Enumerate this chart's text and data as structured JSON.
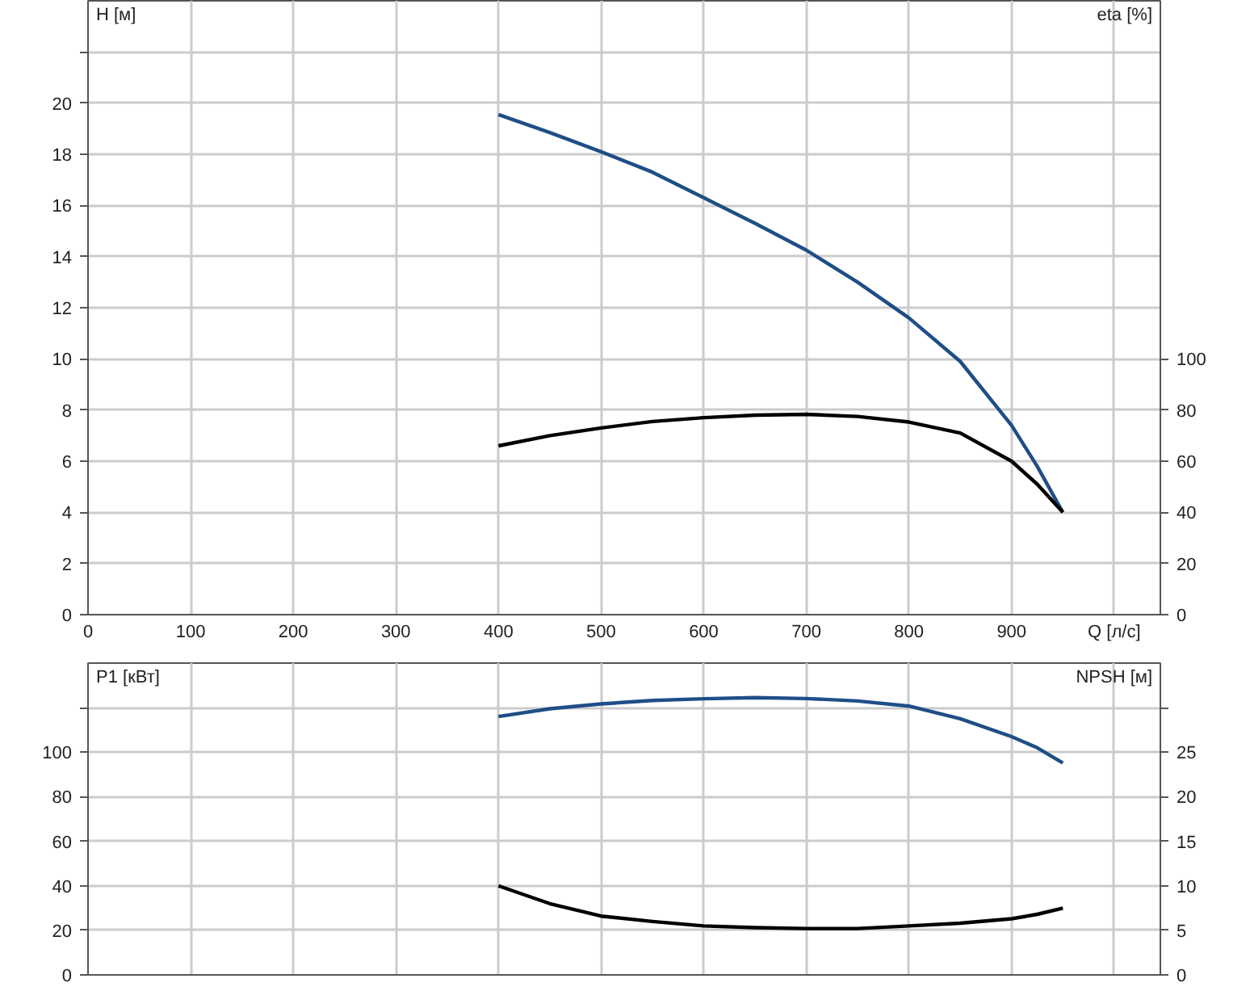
{
  "chart_data": [
    {
      "type": "line",
      "ylabel": "H [м]",
      "y2label": "eta [%]",
      "xlim": [
        0,
        1045
      ],
      "xticks": [
        0,
        100,
        200,
        300,
        400,
        500,
        600,
        700,
        800,
        900,
        {
          "value": 1000,
          "label": "Q [л/с]"
        }
      ],
      "ylim": [
        0,
        24
      ],
      "yticks": [
        0,
        2,
        4,
        6,
        8,
        10,
        12,
        14,
        16,
        18,
        20,
        {
          "value": 22,
          "label": null
        }
      ],
      "y2lim": [
        0,
        240
      ],
      "y2ticks": [
        0,
        20,
        40,
        60,
        80,
        100
      ],
      "grid": true,
      "x": [
        400,
        450,
        500,
        550,
        600,
        650,
        700,
        750,
        800,
        850,
        900,
        925,
        950
      ],
      "series": [
        {
          "color": "#1f4e87",
          "values": [
            19.55,
            18.85,
            18.1,
            17.3,
            16.3,
            15.3,
            14.25,
            13.0,
            11.6,
            9.9,
            7.4,
            5.8,
            4.0
          ]
        },
        {
          "color": "#000000",
          "axis": "y2",
          "values": [
            66,
            70,
            73,
            75.5,
            77,
            78,
            78.3,
            77.5,
            75.3,
            71,
            60,
            51,
            40
          ]
        }
      ]
    },
    {
      "type": "line",
      "ylabel": "P1 [кВт]",
      "y2label": "NPSH [м]",
      "xlim": [
        0,
        1045
      ],
      "xticks": [
        0,
        100,
        200,
        300,
        400,
        500,
        600,
        700,
        800,
        900,
        1000
      ],
      "tick_labels": "y",
      "ylim": [
        0,
        140
      ],
      "yticks": [
        0,
        20,
        40,
        60,
        80,
        100,
        {
          "value": 120,
          "label": null
        }
      ],
      "y2lim": [
        0,
        35
      ],
      "y2ticks": [
        0,
        5,
        10,
        15,
        20,
        25,
        {
          "value": 30,
          "label": null
        }
      ],
      "grid": true,
      "x": [
        400,
        450,
        500,
        550,
        600,
        650,
        700,
        750,
        800,
        850,
        900,
        925,
        950
      ],
      "series": [
        {
          "color": "#1f4e87",
          "values": [
            116,
            119.5,
            121.7,
            123.2,
            124,
            124.5,
            124.1,
            123,
            120.7,
            115,
            107,
            102,
            95.2
          ]
        },
        {
          "color": "#000000",
          "axis": "y2",
          "values": [
            10,
            8.0,
            6.6,
            6.0,
            5.5,
            5.3,
            5.2,
            5.2,
            5.5,
            5.8,
            6.3,
            6.8,
            7.5
          ]
        }
      ]
    }
  ]
}
